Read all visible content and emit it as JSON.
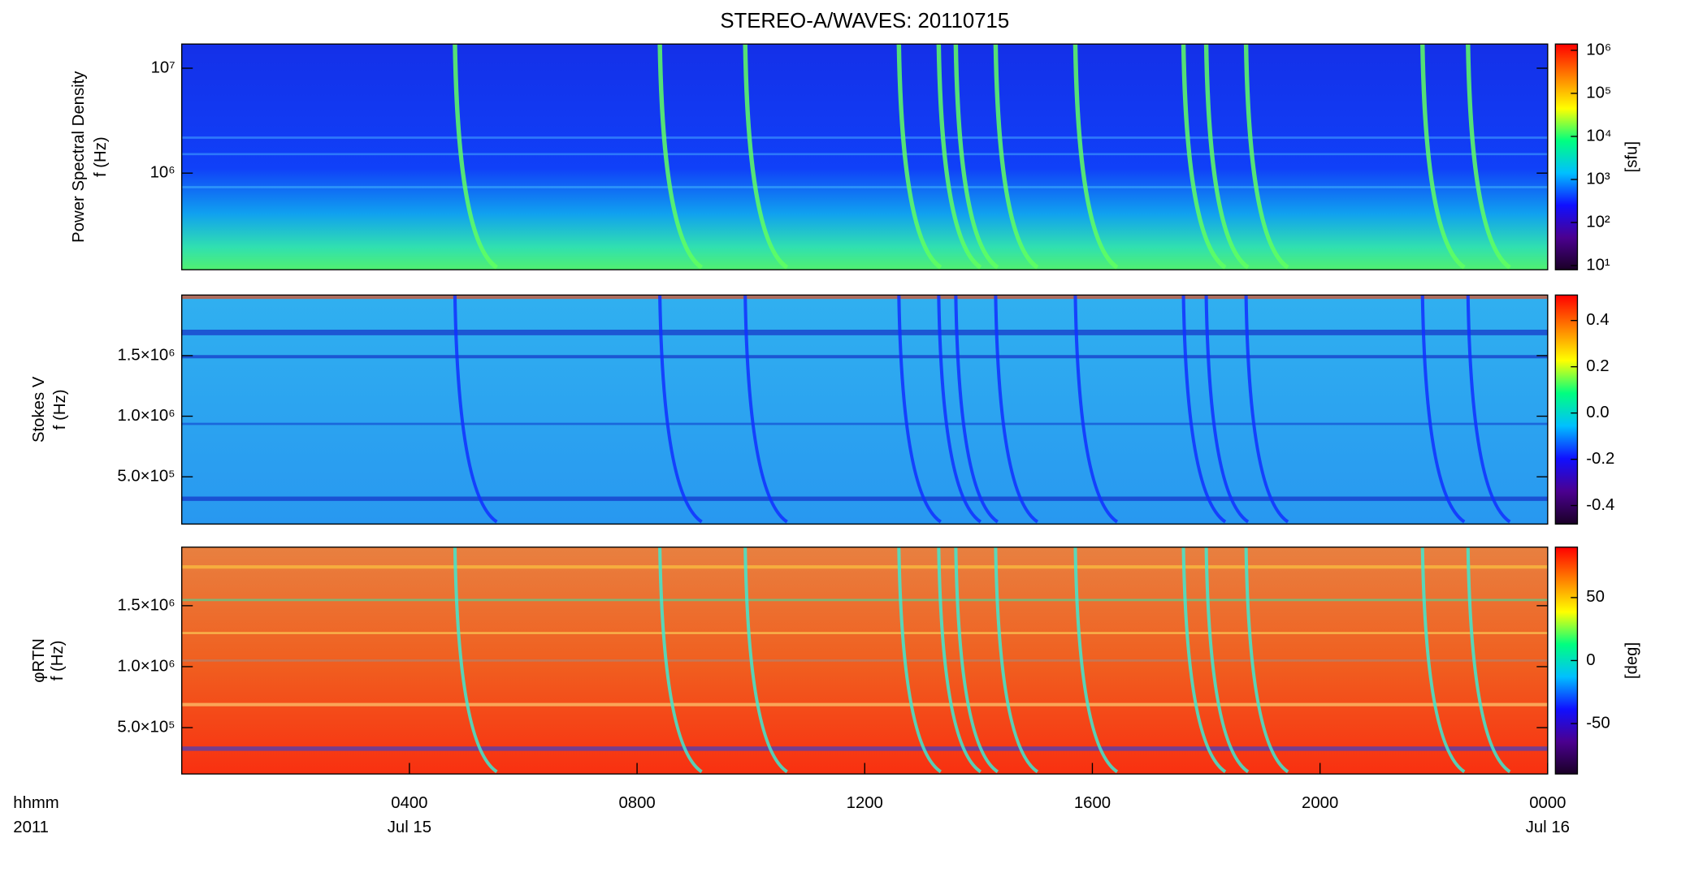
{
  "chart_data": [
    {
      "type": "spectrogram",
      "title": "STEREO-A/WAVES: 20110715",
      "ylabel": [
        "Power Spectral Density",
        "f (Hz)"
      ],
      "ylog": true,
      "ylim": [
        120000,
        17000000
      ],
      "yticks": [
        {
          "value": 1000000,
          "label": "10⁶"
        },
        {
          "value": 10000000,
          "label": "10⁷"
        }
      ],
      "xlim": [
        0,
        24
      ],
      "bursts": [
        4.8,
        8.4,
        9.9,
        12.6,
        13.3,
        13.6,
        14.3,
        15.7,
        17.6,
        18.0,
        18.7,
        21.8,
        22.6
      ],
      "burst_color": "#60ff60",
      "clog": true,
      "clim": [
        8,
        1400000
      ],
      "cticks": [
        {
          "value": 10,
          "label": "10¹"
        },
        {
          "value": 100,
          "label": "10²"
        },
        {
          "value": 1000,
          "label": "10³"
        },
        {
          "value": 10000,
          "label": "10⁴"
        },
        {
          "value": 100000,
          "label": "10⁵"
        },
        {
          "value": 1000000,
          "label": "10⁶"
        }
      ],
      "clabel": "[sfu]",
      "colormap": [
        "#1a0026",
        "#4b0090",
        "#1010ff",
        "#00c0ff",
        "#00ff80",
        "#ffff00",
        "#ff8000",
        "#ff0000"
      ]
    },
    {
      "type": "spectrogram",
      "ylabel": [
        "Stokes V",
        "f (Hz)"
      ],
      "ylog": false,
      "ylim": [
        110000,
        2000000
      ],
      "yticks": [
        {
          "value": 500000,
          "label": "5.0×10⁵"
        },
        {
          "value": 1000000,
          "label": "1.0×10⁶"
        },
        {
          "value": 1500000,
          "label": "1.5×10⁶"
        }
      ],
      "xlim": [
        0,
        24
      ],
      "burst_color": "#1030ff",
      "clog": false,
      "clim": [
        -0.48,
        0.51
      ],
      "cticks": [
        -0.4,
        -0.2,
        {
          "value": 0,
          "label": "0.0"
        },
        0.2,
        0.4
      ],
      "colormap": [
        "#1a0026",
        "#4b0090",
        "#1010ff",
        "#00c0ff",
        "#00ff80",
        "#ffff00",
        "#ff8000",
        "#ff0000"
      ]
    },
    {
      "type": "spectrogram",
      "ylabel": [
        "φRTN",
        "f (Hz)"
      ],
      "ylog": false,
      "ylim": [
        120000,
        1980000
      ],
      "yticks": [
        {
          "value": 500000,
          "label": "5.0×10⁵"
        },
        {
          "value": 1000000,
          "label": "1.0×10⁶"
        },
        {
          "value": 1500000,
          "label": "1.5×10⁶"
        }
      ],
      "xlim": [
        0,
        24
      ],
      "xticks": [
        {
          "value": 4,
          "label": "0400"
        },
        {
          "value": 8,
          "label": "0800"
        },
        {
          "value": 12,
          "label": "1200"
        },
        {
          "value": 16,
          "label": "1600"
        },
        {
          "value": 20,
          "label": "2000"
        },
        {
          "value": 24,
          "label": "0000"
        }
      ],
      "x_date_labels": [
        {
          "value": 4,
          "label": "Jul 15"
        },
        {
          "value": 24,
          "label": "Jul 16"
        }
      ],
      "x_unit_label": [
        "hhmm",
        "2011"
      ],
      "burst_color": "#40e8d0",
      "clog": false,
      "clim": [
        -90,
        90
      ],
      "cticks": [
        -50,
        0,
        50
      ],
      "clabel": "[deg]",
      "colormap": [
        "#1a0026",
        "#4b0090",
        "#1010ff",
        "#00c0ff",
        "#00ff80",
        "#ffff00",
        "#ff8000",
        "#ff0000"
      ]
    }
  ]
}
